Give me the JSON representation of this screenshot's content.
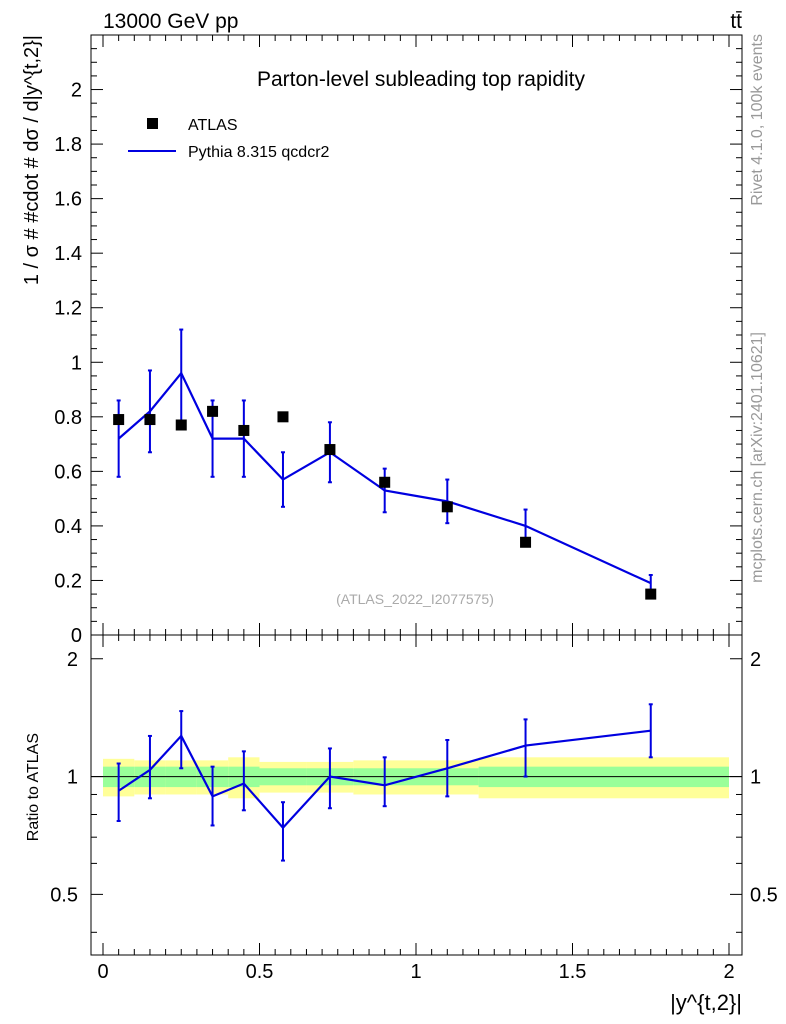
{
  "header": {
    "left": "13000 GeV pp",
    "right": "tt̄"
  },
  "side_labels": {
    "rivet": "Rivet 4.1.0,  100k events",
    "mcplots": "mcplots.cern.ch [arXiv:2401.10621]"
  },
  "chart_data": {
    "type": "line",
    "title": "Parton-level subleading top rapidity",
    "watermark": "(ATLAS_2022_I2077575)",
    "xlabel": "|y^{t,2}|",
    "ylabel": "1 / σ # #cdot # dσ / d|y^{t,2}|",
    "ratio_ylabel": "Ratio to ATLAS",
    "xlim": [
      -0.07,
      2.05
    ],
    "ylim": [
      0,
      2.2
    ],
    "ratio_ylim": [
      0.35,
      2.3
    ],
    "x_ticks": [
      0,
      0.5,
      1,
      1.5,
      2
    ],
    "x_tick_labels": [
      "0",
      "0.5",
      "1",
      "1.5",
      "2"
    ],
    "y_ticks": [
      0,
      0.2,
      0.4,
      0.6,
      0.8,
      1,
      1.2,
      1.4,
      1.6,
      1.8,
      2
    ],
    "y_tick_labels": [
      "0",
      "0.2",
      "0.4",
      "0.6",
      "0.8",
      "1",
      "1.2",
      "1.4",
      "1.6",
      "1.8",
      "2"
    ],
    "ratio_ticks": [
      0.5,
      1,
      2
    ],
    "ratio_tick_labels": [
      "0.5",
      "1",
      "2"
    ],
    "bin_edges": [
      0,
      0.1,
      0.2,
      0.3,
      0.4,
      0.5,
      0.65,
      0.8,
      1.0,
      1.2,
      1.5,
      2.0
    ],
    "legend": [
      {
        "name": "ATLAS",
        "kind": "marker"
      },
      {
        "name": "Pythia 8.315 qcdcr2",
        "kind": "line"
      }
    ],
    "series": [
      {
        "name": "ATLAS",
        "color": "#000000",
        "x": [
          0.05,
          0.15,
          0.25,
          0.35,
          0.45,
          0.575,
          0.725,
          0.9,
          1.1,
          1.35,
          1.75
        ],
        "values": [
          0.79,
          0.79,
          0.77,
          0.82,
          0.75,
          0.8,
          0.68,
          0.56,
          0.47,
          0.34,
          0.15
        ]
      },
      {
        "name": "Pythia 8.315 qcdcr2",
        "color": "#0000e0",
        "x": [
          0.05,
          0.15,
          0.25,
          0.35,
          0.45,
          0.575,
          0.725,
          0.9,
          1.1,
          1.35,
          1.75
        ],
        "values": [
          0.72,
          0.82,
          0.96,
          0.72,
          0.72,
          0.57,
          0.67,
          0.53,
          0.49,
          0.4,
          0.19
        ],
        "err_low": [
          0.58,
          0.67,
          0.78,
          0.58,
          0.58,
          0.47,
          0.56,
          0.45,
          0.41,
          0.33,
          0.16
        ],
        "err_high": [
          0.86,
          0.97,
          1.12,
          0.86,
          0.86,
          0.67,
          0.78,
          0.61,
          0.57,
          0.46,
          0.22
        ]
      }
    ],
    "ratio": {
      "values": [
        0.92,
        1.04,
        1.27,
        0.89,
        0.96,
        0.74,
        1.0,
        0.95,
        1.05,
        1.2,
        1.31
      ],
      "err_low": [
        0.77,
        0.88,
        1.05,
        0.75,
        0.82,
        0.61,
        0.83,
        0.84,
        0.89,
        1.0,
        1.12
      ],
      "err_high": [
        1.08,
        1.27,
        1.47,
        1.06,
        1.16,
        0.86,
        1.18,
        1.12,
        1.24,
        1.4,
        1.53
      ],
      "band_inner": [
        0.06,
        0.06,
        0.06,
        0.06,
        0.06,
        0.05,
        0.05,
        0.05,
        0.05,
        0.06,
        0.06
      ],
      "band_outer": [
        0.11,
        0.1,
        0.1,
        0.1,
        0.12,
        0.09,
        0.09,
        0.1,
        0.1,
        0.12,
        0.12
      ],
      "inner_color": "#99ff99",
      "outer_color": "#ffff99"
    }
  }
}
